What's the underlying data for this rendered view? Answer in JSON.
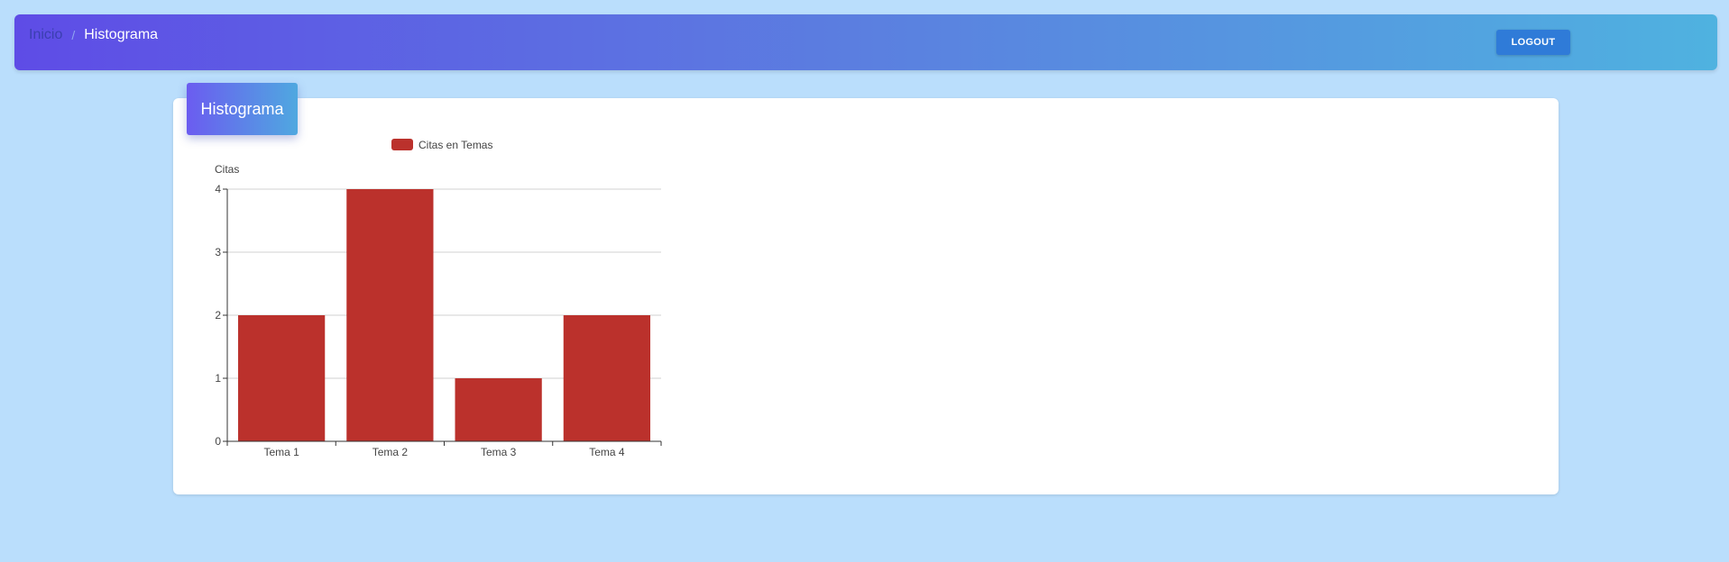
{
  "navbar": {
    "breadcrumb": {
      "home_label": "Inicio",
      "separator": "/",
      "current_label": "Histograma"
    },
    "logout_label": "LOGOUT"
  },
  "card": {
    "header_title": "Histograma"
  },
  "colors": {
    "bar": "#bb312c",
    "logout_button": "#2f7bd8",
    "page_background": "#badefc"
  },
  "chart_data": {
    "type": "bar",
    "title": "",
    "categories": [
      "Tema 1",
      "Tema 2",
      "Tema 3",
      "Tema 4"
    ],
    "series": [
      {
        "name": "Citas en Temas",
        "values": [
          2,
          4,
          1,
          2
        ]
      }
    ],
    "xlabel": "",
    "ylabel": "Citas",
    "ylim": [
      0,
      4
    ],
    "yticks": [
      0,
      1,
      2,
      3,
      4
    ],
    "grid": true,
    "legend_position": "top"
  }
}
